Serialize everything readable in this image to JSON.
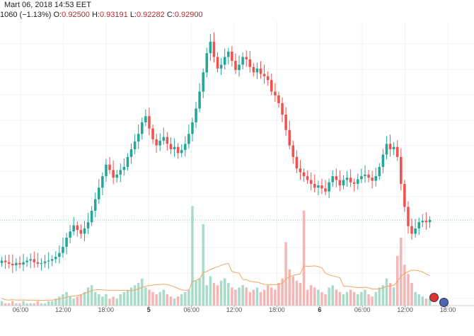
{
  "header": {
    "date_text": "Mart 06, 2018 14:53 EET",
    "change_text": "1060 (−1.13%)",
    "o_label": "O:",
    "o_value": "0.92500",
    "h_label": "H:",
    "h_value": "0.93191",
    "l_label": "L:",
    "l_value": "0.92282",
    "c_label": "C:",
    "c_value": "0.92900"
  },
  "colors": {
    "up": "#26a69a",
    "down": "#ef5350",
    "up_vol": "#a9dcc8",
    "down_vol": "#f4b6b4",
    "ma_line": "#f4a460",
    "last_price_line": "#7fd0b6",
    "grid": "#eef0f3"
  },
  "chart_data": {
    "type": "candlestick",
    "price_scale": "hidden (cropped)",
    "x_tick_labels": [
      "06:00",
      "12:00",
      "18:00",
      "5",
      "06:00",
      "12:00",
      "18:00",
      "6",
      "06:00",
      "12:00",
      "18:00"
    ],
    "price_path": [
      0.4,
      0.38,
      0.36,
      0.34,
      0.37,
      0.35,
      0.38,
      0.4,
      0.42,
      0.38,
      0.36,
      0.37,
      0.39,
      0.4,
      0.42,
      0.45,
      0.5,
      0.58,
      0.7,
      0.78,
      0.86,
      0.8,
      0.75,
      0.82,
      0.9,
      1.05,
      1.2,
      1.35,
      1.5,
      1.65,
      1.58,
      1.48,
      1.52,
      1.58,
      1.62,
      1.75,
      1.85,
      1.95,
      2.05,
      2.2,
      2.28,
      2.12,
      1.98,
      1.9,
      1.96,
      2.01,
      1.92,
      1.85,
      1.88,
      1.8,
      1.84,
      1.92,
      2.05,
      2.2,
      2.38,
      2.6,
      2.85,
      3.1,
      3.25,
      3.05,
      2.9,
      2.95,
      3.05,
      3.12,
      3.0,
      2.88,
      2.95,
      3.05,
      3.02,
      2.92,
      2.85,
      2.9,
      2.83,
      2.8,
      2.75,
      2.6,
      2.55,
      2.45,
      2.3,
      2.1,
      1.9,
      1.75,
      1.6,
      1.55,
      1.5,
      1.45,
      1.4,
      1.35,
      1.38,
      1.34,
      1.3,
      1.42,
      1.5,
      1.45,
      1.38,
      1.45,
      1.48,
      1.42,
      1.4,
      1.46,
      1.5,
      1.52,
      1.48,
      1.44,
      1.5,
      1.62,
      1.78,
      1.92,
      1.85,
      1.88,
      1.75,
      1.4,
      1.1,
      0.85,
      0.75,
      0.82,
      0.9,
      0.92,
      0.9,
      0.93
    ],
    "volume": [
      2,
      1,
      1,
      2,
      1,
      1,
      2,
      1,
      1,
      1,
      2,
      1,
      1,
      2,
      2,
      3,
      4,
      5,
      6,
      4,
      3,
      4,
      5,
      6,
      8,
      9,
      6,
      5,
      4,
      5,
      3,
      4,
      3,
      5,
      6,
      7,
      8,
      9,
      10,
      12,
      8,
      7,
      6,
      5,
      6,
      7,
      5,
      4,
      3,
      4,
      5,
      6,
      7,
      9,
      11,
      12,
      10,
      9,
      13,
      10,
      9,
      11,
      12,
      10,
      8,
      7,
      8,
      9,
      8,
      6,
      7,
      8,
      6,
      7,
      9,
      8,
      7,
      10,
      12,
      14,
      16,
      13,
      11,
      10,
      8,
      7,
      9,
      8,
      7,
      6,
      5,
      8,
      9,
      7,
      6,
      5,
      6,
      7,
      6,
      5,
      6,
      7,
      5,
      4,
      6,
      8,
      9,
      12,
      10,
      8,
      9,
      16,
      18,
      14,
      10,
      6,
      5,
      4,
      3,
      3
    ],
    "volume_spikes": {
      "53": 44,
      "56": 36,
      "84": 42,
      "79": 28,
      "111": 30,
      "110": 22
    },
    "moving_average_on_volume": true,
    "last_price_line": 0.929
  }
}
